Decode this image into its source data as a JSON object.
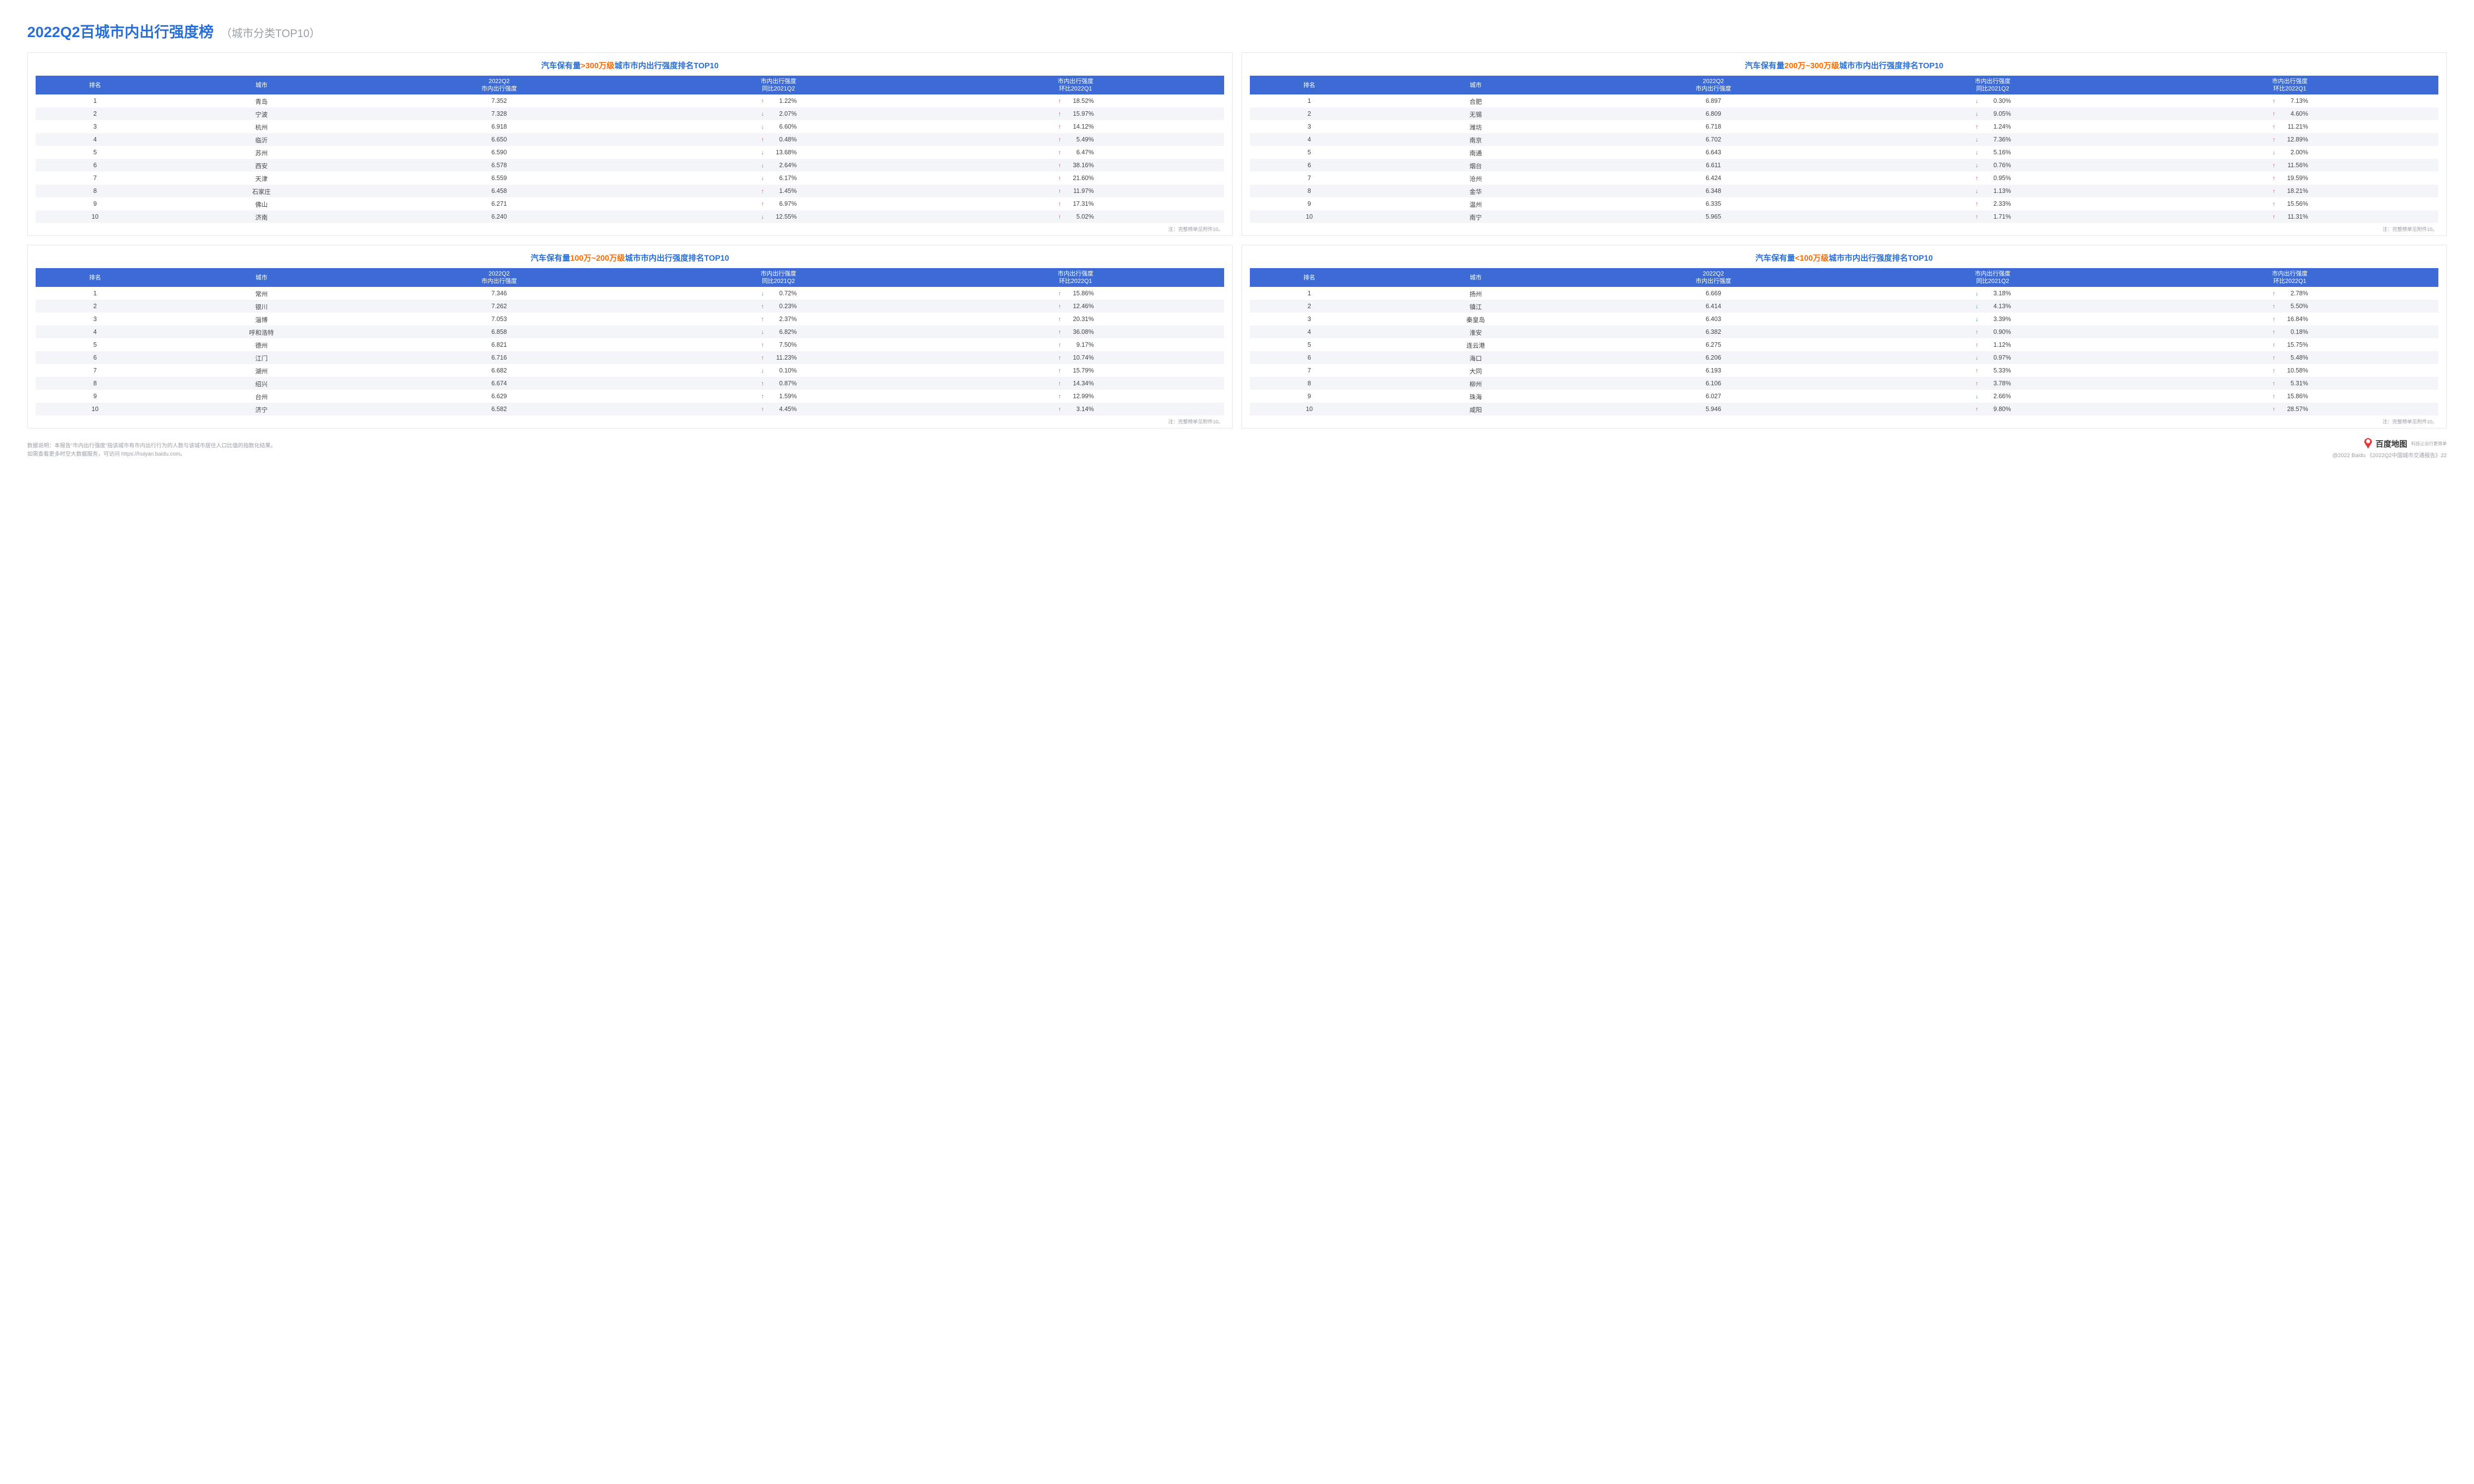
{
  "colors": {
    "title_blue": "#2a6fd6",
    "title_grey": "#9aa0a6",
    "header_bg": "#3d6bd6",
    "header_fg": "#ffffff",
    "row_alt_bg": "#f3f5f8",
    "arrow_up": "#e23b3b",
    "arrow_down": "#1eae4e",
    "orange": "#ff6a00",
    "border": "#e2e5ea",
    "text": "#444444"
  },
  "title": {
    "main": "2022Q2百城市内出行强度榜",
    "sub": "（城市分类TOP10）"
  },
  "columns": {
    "rank": "排名",
    "city": "城市",
    "value_line1": "2022Q2",
    "value_line2": "市内出行强度",
    "yoy_line1": "市内出行强度",
    "yoy_line2": "同比2021Q2",
    "qoq_line1": "市内出行强度",
    "qoq_line2": "环比2022Q1"
  },
  "panel_note": "注：完整榜单见附件10。",
  "panels": [
    {
      "title_parts": [
        {
          "text": "汽车保有量",
          "cls": "kw-blue"
        },
        {
          "text": ">300万级",
          "cls": "kw-orange"
        },
        {
          "text": "城市市内出行强度排名TOP10",
          "cls": "kw-blue"
        }
      ],
      "rows": [
        {
          "rank": 1,
          "city": "青岛",
          "value": "7.352",
          "yoy": {
            "dir": "up",
            "pct": "1.22%"
          },
          "qoq": {
            "dir": "up",
            "pct": "18.52%"
          }
        },
        {
          "rank": 2,
          "city": "宁波",
          "value": "7.328",
          "yoy": {
            "dir": "down",
            "pct": "2.07%"
          },
          "qoq": {
            "dir": "up",
            "pct": "15.97%"
          }
        },
        {
          "rank": 3,
          "city": "杭州",
          "value": "6.918",
          "yoy": {
            "dir": "down",
            "pct": "6.60%"
          },
          "qoq": {
            "dir": "up",
            "pct": "14.12%"
          }
        },
        {
          "rank": 4,
          "city": "临沂",
          "value": "6.650",
          "yoy": {
            "dir": "up",
            "pct": "0.48%"
          },
          "qoq": {
            "dir": "up",
            "pct": "5.49%"
          }
        },
        {
          "rank": 5,
          "city": "苏州",
          "value": "6.590",
          "yoy": {
            "dir": "down",
            "pct": "13.68%"
          },
          "qoq": {
            "dir": "up",
            "pct": "6.47%"
          }
        },
        {
          "rank": 6,
          "city": "西安",
          "value": "6.578",
          "yoy": {
            "dir": "down",
            "pct": "2.64%"
          },
          "qoq": {
            "dir": "up",
            "pct": "38.16%"
          }
        },
        {
          "rank": 7,
          "city": "天津",
          "value": "6.559",
          "yoy": {
            "dir": "down",
            "pct": "6.17%"
          },
          "qoq": {
            "dir": "up",
            "pct": "21.60%"
          }
        },
        {
          "rank": 8,
          "city": "石家庄",
          "value": "6.458",
          "yoy": {
            "dir": "up",
            "pct": "1.45%"
          },
          "qoq": {
            "dir": "up",
            "pct": "11.97%"
          }
        },
        {
          "rank": 9,
          "city": "佛山",
          "value": "6.271",
          "yoy": {
            "dir": "up",
            "pct": "6.97%"
          },
          "qoq": {
            "dir": "up",
            "pct": "17.31%"
          }
        },
        {
          "rank": 10,
          "city": "济南",
          "value": "6.240",
          "yoy": {
            "dir": "down",
            "pct": "12.55%"
          },
          "qoq": {
            "dir": "up",
            "pct": "5.02%"
          }
        }
      ]
    },
    {
      "title_parts": [
        {
          "text": "汽车保有量",
          "cls": "kw-blue"
        },
        {
          "text": "200万~300万级",
          "cls": "kw-orange"
        },
        {
          "text": "城市市内出行强度排名TOP10",
          "cls": "kw-blue"
        }
      ],
      "rows": [
        {
          "rank": 1,
          "city": "合肥",
          "value": "6.897",
          "yoy": {
            "dir": "down",
            "pct": "0.30%"
          },
          "qoq": {
            "dir": "up",
            "pct": "7.13%"
          }
        },
        {
          "rank": 2,
          "city": "无锡",
          "value": "6.809",
          "yoy": {
            "dir": "down",
            "pct": "9.05%"
          },
          "qoq": {
            "dir": "up",
            "pct": "4.60%"
          }
        },
        {
          "rank": 3,
          "city": "潍坊",
          "value": "6.718",
          "yoy": {
            "dir": "up",
            "pct": "1.24%"
          },
          "qoq": {
            "dir": "up",
            "pct": "11.21%"
          }
        },
        {
          "rank": 4,
          "city": "南京",
          "value": "6.702",
          "yoy": {
            "dir": "down",
            "pct": "7.36%"
          },
          "qoq": {
            "dir": "up",
            "pct": "12.89%"
          }
        },
        {
          "rank": 5,
          "city": "南通",
          "value": "6.643",
          "yoy": {
            "dir": "down",
            "pct": "5.16%"
          },
          "qoq": {
            "dir": "down",
            "pct": "2.00%"
          }
        },
        {
          "rank": 6,
          "city": "烟台",
          "value": "6.611",
          "yoy": {
            "dir": "down",
            "pct": "0.76%"
          },
          "qoq": {
            "dir": "up",
            "pct": "11.56%"
          }
        },
        {
          "rank": 7,
          "city": "沧州",
          "value": "6.424",
          "yoy": {
            "dir": "up",
            "pct": "0.95%"
          },
          "qoq": {
            "dir": "up",
            "pct": "19.59%"
          }
        },
        {
          "rank": 8,
          "city": "金华",
          "value": "6.348",
          "yoy": {
            "dir": "down",
            "pct": "1.13%"
          },
          "qoq": {
            "dir": "up",
            "pct": "18.21%"
          }
        },
        {
          "rank": 9,
          "city": "温州",
          "value": "6.335",
          "yoy": {
            "dir": "up",
            "pct": "2.33%"
          },
          "qoq": {
            "dir": "up",
            "pct": "15.56%"
          }
        },
        {
          "rank": 10,
          "city": "南宁",
          "value": "5.965",
          "yoy": {
            "dir": "up",
            "pct": "1.71%"
          },
          "qoq": {
            "dir": "up",
            "pct": "11.31%"
          }
        }
      ]
    },
    {
      "title_parts": [
        {
          "text": "汽车保有量",
          "cls": "kw-blue"
        },
        {
          "text": "100万~200万级",
          "cls": "kw-orange"
        },
        {
          "text": "城市市内出行强度排名TOP10",
          "cls": "kw-blue"
        }
      ],
      "rows": [
        {
          "rank": 1,
          "city": "常州",
          "value": "7.346",
          "yoy": {
            "dir": "down",
            "pct": "0.72%"
          },
          "qoq": {
            "dir": "up",
            "pct": "15.86%"
          }
        },
        {
          "rank": 2,
          "city": "银川",
          "value": "7.262",
          "yoy": {
            "dir": "up",
            "pct": "0.23%"
          },
          "qoq": {
            "dir": "up",
            "pct": "12.46%"
          }
        },
        {
          "rank": 3,
          "city": "淄博",
          "value": "7.053",
          "yoy": {
            "dir": "up",
            "pct": "2.37%"
          },
          "qoq": {
            "dir": "up",
            "pct": "20.31%"
          }
        },
        {
          "rank": 4,
          "city": "呼和浩特",
          "value": "6.858",
          "yoy": {
            "dir": "down",
            "pct": "6.82%"
          },
          "qoq": {
            "dir": "up",
            "pct": "36.08%"
          }
        },
        {
          "rank": 5,
          "city": "德州",
          "value": "6.821",
          "yoy": {
            "dir": "up",
            "pct": "7.50%"
          },
          "qoq": {
            "dir": "up",
            "pct": "9.17%"
          }
        },
        {
          "rank": 6,
          "city": "江门",
          "value": "6.716",
          "yoy": {
            "dir": "up",
            "pct": "11.23%"
          },
          "qoq": {
            "dir": "up",
            "pct": "10.74%"
          }
        },
        {
          "rank": 7,
          "city": "湖州",
          "value": "6.682",
          "yoy": {
            "dir": "down",
            "pct": "0.10%"
          },
          "qoq": {
            "dir": "up",
            "pct": "15.79%"
          }
        },
        {
          "rank": 8,
          "city": "绍兴",
          "value": "6.674",
          "yoy": {
            "dir": "up",
            "pct": "0.87%"
          },
          "qoq": {
            "dir": "up",
            "pct": "14.34%"
          }
        },
        {
          "rank": 9,
          "city": "台州",
          "value": "6.629",
          "yoy": {
            "dir": "up",
            "pct": "1.59%"
          },
          "qoq": {
            "dir": "up",
            "pct": "12.99%"
          }
        },
        {
          "rank": 10,
          "city": "济宁",
          "value": "6.582",
          "yoy": {
            "dir": "up",
            "pct": "4.45%"
          },
          "qoq": {
            "dir": "up",
            "pct": "3.14%"
          }
        }
      ]
    },
    {
      "title_parts": [
        {
          "text": "汽车保有量",
          "cls": "kw-blue"
        },
        {
          "text": "<100万级",
          "cls": "kw-orange"
        },
        {
          "text": "城市市内出行强度排名TOP10",
          "cls": "kw-blue"
        }
      ],
      "rows": [
        {
          "rank": 1,
          "city": "扬州",
          "value": "6.669",
          "yoy": {
            "dir": "down",
            "pct": "3.18%"
          },
          "qoq": {
            "dir": "up",
            "pct": "2.78%"
          }
        },
        {
          "rank": 2,
          "city": "镇江",
          "value": "6.414",
          "yoy": {
            "dir": "down",
            "pct": "4.13%"
          },
          "qoq": {
            "dir": "up",
            "pct": "5.50%"
          }
        },
        {
          "rank": 3,
          "city": "秦皇岛",
          "value": "6.403",
          "yoy": {
            "dir": "down",
            "pct": "3.39%"
          },
          "qoq": {
            "dir": "up",
            "pct": "16.84%"
          }
        },
        {
          "rank": 4,
          "city": "淮安",
          "value": "6.382",
          "yoy": {
            "dir": "up",
            "pct": "0.90%"
          },
          "qoq": {
            "dir": "up",
            "pct": "0.18%"
          }
        },
        {
          "rank": 5,
          "city": "连云港",
          "value": "6.275",
          "yoy": {
            "dir": "up",
            "pct": "1.12%"
          },
          "qoq": {
            "dir": "up",
            "pct": "15.75%"
          }
        },
        {
          "rank": 6,
          "city": "海口",
          "value": "6.206",
          "yoy": {
            "dir": "down",
            "pct": "0.97%"
          },
          "qoq": {
            "dir": "up",
            "pct": "5.48%"
          }
        },
        {
          "rank": 7,
          "city": "大同",
          "value": "6.193",
          "yoy": {
            "dir": "up",
            "pct": "5.33%"
          },
          "qoq": {
            "dir": "up",
            "pct": "10.58%"
          }
        },
        {
          "rank": 8,
          "city": "柳州",
          "value": "6.106",
          "yoy": {
            "dir": "up",
            "pct": "3.78%"
          },
          "qoq": {
            "dir": "up",
            "pct": "5.31%"
          }
        },
        {
          "rank": 9,
          "city": "珠海",
          "value": "6.027",
          "yoy": {
            "dir": "down",
            "pct": "2.66%"
          },
          "qoq": {
            "dir": "up",
            "pct": "15.86%"
          }
        },
        {
          "rank": 10,
          "city": "咸阳",
          "value": "5.946",
          "yoy": {
            "dir": "up",
            "pct": "9.80%"
          },
          "qoq": {
            "dir": "up",
            "pct": "28.57%"
          }
        }
      ]
    }
  ],
  "footer": {
    "note1": "数据说明：本报告\"市内出行强度\"指该城市有市内出行行为的人数与该城市居住人口比值的指数化结果。",
    "note2": "如需查看更多时空大数据服务，可访问 https://huiyan.baidu.com。",
    "brand_name": "百度地图",
    "brand_tag": "科技让出行更简单",
    "copyright": "@2022 Baidu 《2022Q2中国城市交通报告》22"
  }
}
